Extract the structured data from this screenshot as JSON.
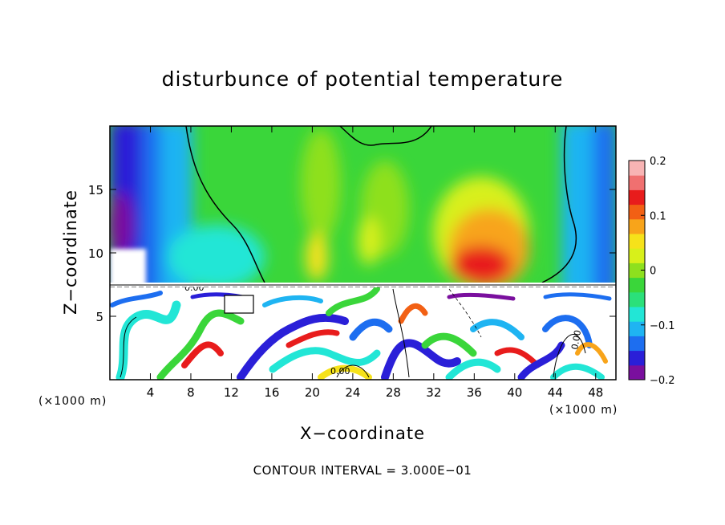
{
  "chart_data": {
    "type": "heatmap",
    "title": "disturbunce of potential temperature",
    "xlabel": "X−coordinate",
    "ylabel": "Z−coordinate",
    "x_unit": "(×1000 m)",
    "xlim": [
      0,
      50
    ],
    "ylim": [
      0,
      20
    ],
    "x_ticks": [
      4,
      8,
      12,
      16,
      20,
      24,
      28,
      32,
      36,
      40,
      44,
      48
    ],
    "y_ticks": [
      5,
      10,
      15
    ],
    "colorbar": {
      "range": [
        -0.2,
        0.2
      ],
      "ticks": [
        -0.2,
        -0.1,
        0,
        0.1,
        0.2
      ],
      "tick_labels": [
        "−0.2",
        "−0.1",
        "0",
        "0.1",
        "0.2"
      ],
      "colors": [
        "#7a0f9e",
        "#2a1fd8",
        "#1d6ef0",
        "#1fb4f2",
        "#22e6d6",
        "#2be07a",
        "#3ad63a",
        "#8ee01e",
        "#d8f01a",
        "#f6e21a",
        "#f8a41a",
        "#f26014",
        "#e81c1c",
        "#f07070",
        "#f8b4b4"
      ]
    },
    "contour_label": "0.00",
    "regions": [
      {
        "x": [
          0,
          50
        ],
        "z": [
          7.5,
          20
        ],
        "feature": "upper layer smooth field"
      },
      {
        "x": [
          34,
          42
        ],
        "z": [
          8,
          13
        ],
        "value": 0.14
      },
      {
        "x": [
          0,
          2
        ],
        "z": [
          9,
          14
        ],
        "value": -0.2
      },
      {
        "x": [
          0,
          50
        ],
        "z": [
          0,
          7.3
        ],
        "feature": "turbulent lower layer"
      }
    ]
  },
  "footer": "CONTOUR INTERVAL = 3.000E−01"
}
